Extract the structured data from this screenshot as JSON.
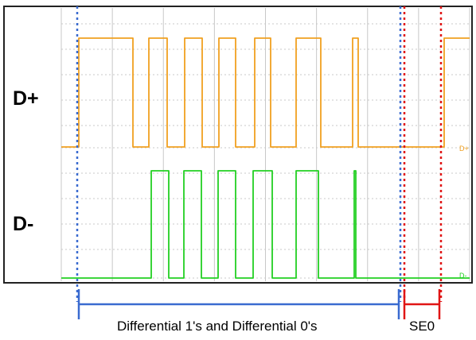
{
  "labels": {
    "d_plus": "D+",
    "d_minus": "D-",
    "trace_d_plus_marker": "D+",
    "trace_d_minus_marker": "D-",
    "differential_caption": "Differential 1's and Differential 0's",
    "se0_caption": "SE0"
  },
  "colors": {
    "background": "#ffffff",
    "screen_background": "#ffffff",
    "screen_frame": "#222222",
    "grid": "#c8c8c8",
    "d_plus_trace": "#f0a020",
    "d_minus_trace": "#22d022",
    "differential_marker": "#3a6bd0",
    "se0_marker": "#e01515"
  },
  "traces": {
    "d_plus_levels": [
      0,
      1,
      0,
      1,
      0,
      1,
      0,
      1,
      0,
      1,
      0,
      1,
      0,
      1,
      0,
      0,
      0,
      1
    ],
    "d_minus_levels": [
      0,
      0,
      0,
      1,
      0,
      1,
      0,
      1,
      0,
      1,
      0,
      1,
      0,
      1,
      0,
      0
    ]
  }
}
